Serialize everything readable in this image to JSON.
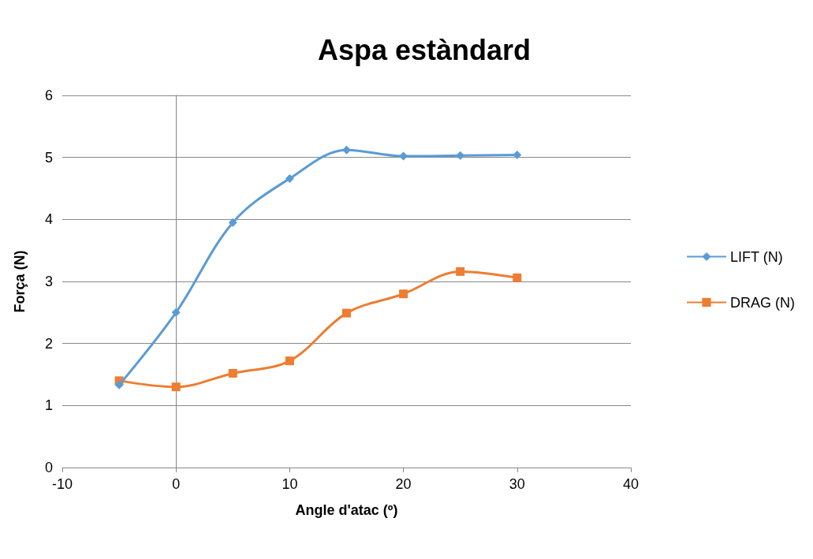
{
  "chart_data": {
    "type": "line",
    "title": "Aspa estàndard",
    "xlabel": "Angle d'atac (º)",
    "ylabel": "Força (N)",
    "x": [
      -5,
      0,
      5,
      10,
      15,
      20,
      25,
      30
    ],
    "series": [
      {
        "name": "LIFT (N)",
        "color": "#5b9bd5",
        "marker": "diamond",
        "values": [
          1.33,
          2.5,
          3.95,
          4.66,
          5.12,
          5.02,
          5.03,
          5.04
        ]
      },
      {
        "name": "DRAG (N)",
        "color": "#ed7d31",
        "marker": "square",
        "values": [
          1.4,
          1.3,
          1.52,
          1.72,
          2.49,
          2.8,
          3.16,
          3.06
        ]
      }
    ],
    "xlim": [
      -10,
      40
    ],
    "xticks": [
      -10,
      0,
      10,
      20,
      30,
      40
    ],
    "ylim": [
      0,
      6
    ],
    "yticks": [
      0,
      1,
      2,
      3,
      4,
      5,
      6
    ],
    "grid": "y",
    "legend": "right"
  }
}
